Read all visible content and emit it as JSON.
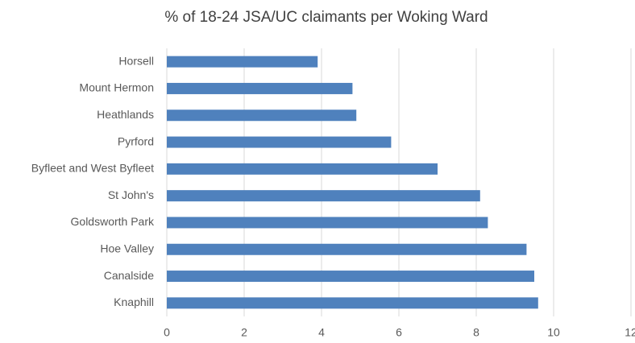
{
  "chart_data": {
    "type": "hbar",
    "title": "% of 18-24 JSA/UC claimants per Woking Ward",
    "categories": [
      "Horsell",
      "Mount Hermon",
      "Heathlands",
      "Pyrford",
      "Byfleet and West Byfleet",
      "St John's",
      "Goldsworth Park",
      "Hoe Valley",
      "Canalside",
      "Knaphill"
    ],
    "values": [
      3.9,
      4.8,
      4.9,
      5.8,
      7.0,
      8.1,
      8.3,
      9.3,
      9.5,
      9.6
    ],
    "color": "#4f81bd",
    "xlim": [
      0,
      12
    ],
    "xticks": [
      0,
      2,
      4,
      6,
      8,
      10,
      12
    ],
    "grid": true
  }
}
